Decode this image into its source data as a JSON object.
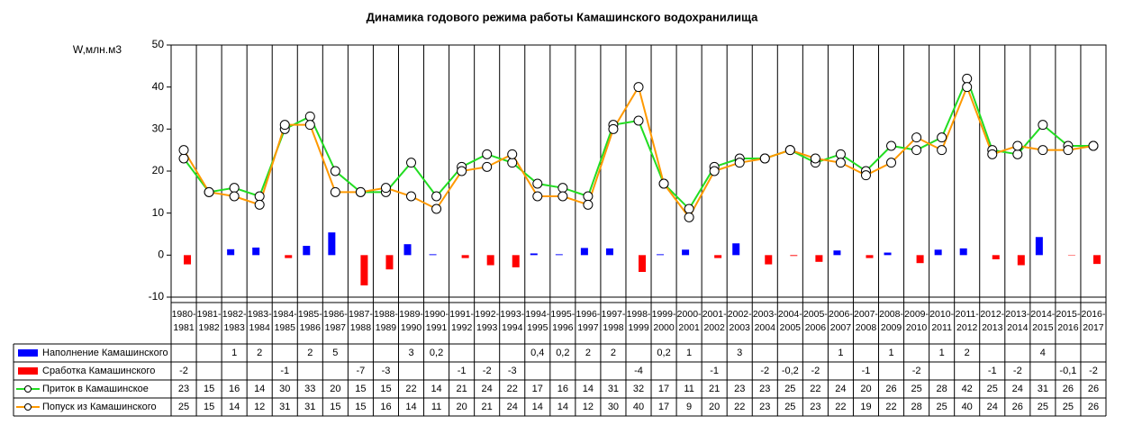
{
  "chart_data": {
    "type": "combo",
    "title": "Динамика годового режима работы Камашинского водохранилища",
    "y_label": "W,млн.м3",
    "categories": [
      "1980-1981",
      "1981-1982",
      "1982-1983",
      "1983-1984",
      "1984-1985",
      "1985-1986",
      "1986-1987",
      "1987-1988",
      "1988-1989",
      "1989-1990",
      "1990-1991",
      "1991-1992",
      "1992-1993",
      "1993-1994",
      "1994-1995",
      "1995-1996",
      "1996-1997",
      "1997-1998",
      "1998-1999",
      "1999-2000",
      "2000-2001",
      "2001-2002",
      "2002-2003",
      "2003-2004",
      "2004-2005",
      "2005-2006",
      "2006-2007",
      "2007-2008",
      "2008-2009",
      "2009-2010",
      "2010-2011",
      "2011-2012",
      "2012-2013",
      "2013-2014",
      "2014-2015",
      "2015-2016",
      "2016-2017"
    ],
    "ylim": [
      -10,
      50
    ],
    "yticks": [
      -10,
      0,
      10,
      20,
      30,
      40,
      50
    ],
    "series": [
      {
        "name": "Наполнение Камашинского",
        "type": "bar",
        "color": "#0000ff",
        "values": [
          null,
          null,
          1.4,
          1.8,
          null,
          2.2,
          5.4,
          null,
          null,
          2.6,
          0.2,
          null,
          null,
          null,
          0.4,
          0.2,
          1.7,
          1.6,
          null,
          0.2,
          1.3,
          null,
          2.8,
          null,
          null,
          null,
          1.1,
          null,
          0.6,
          null,
          1.3,
          1.6,
          null,
          null,
          4.3,
          null,
          null
        ],
        "value_labels": [
          null,
          null,
          "1",
          "2",
          null,
          "2",
          "5",
          null,
          null,
          "3",
          "0,2",
          null,
          null,
          null,
          "0,4",
          "0,2",
          "2",
          "2",
          null,
          "0,2",
          "1",
          null,
          "3",
          null,
          null,
          null,
          "1",
          null,
          "1",
          null,
          "1",
          "2",
          null,
          null,
          "4",
          null,
          null
        ]
      },
      {
        "name": "Сработка Камашинского",
        "type": "bar",
        "color": "#ff0000",
        "values": [
          -2.2,
          null,
          null,
          null,
          -0.7,
          null,
          null,
          -7.2,
          -3.4,
          null,
          null,
          -0.7,
          -2.4,
          -2.9,
          null,
          null,
          null,
          null,
          -4.0,
          null,
          null,
          -0.7,
          null,
          -2.2,
          -0.2,
          -1.6,
          null,
          -0.7,
          null,
          -1.9,
          null,
          null,
          -1.0,
          -2.4,
          null,
          -0.1,
          -2.1
        ],
        "value_labels": [
          "-2",
          null,
          null,
          null,
          "-1",
          null,
          null,
          "-7",
          "-3",
          null,
          null,
          "-1",
          "-2",
          "-3",
          null,
          null,
          null,
          null,
          "-4",
          null,
          null,
          "-1",
          null,
          "-2",
          "-0,2",
          "-2",
          null,
          "-1",
          null,
          "-2",
          null,
          null,
          "-1",
          "-2",
          null,
          "-0,1",
          "-2"
        ]
      },
      {
        "name": "Приток в Камашинское",
        "type": "line",
        "color": "#22dd22",
        "values": [
          23,
          15,
          16,
          14,
          30,
          33,
          20,
          15,
          15,
          22,
          14,
          21,
          24,
          22,
          17,
          16,
          14,
          31,
          32,
          17,
          11,
          21,
          23,
          23,
          25,
          22,
          24,
          20,
          26,
          25,
          28,
          42,
          25,
          24,
          31,
          26,
          26
        ]
      },
      {
        "name": "Попуск из Камашинского",
        "type": "line",
        "color": "#ff9900",
        "values": [
          25,
          15,
          14,
          12,
          31,
          31,
          15,
          15,
          16,
          14,
          11,
          20,
          21,
          24,
          14,
          14,
          12,
          30,
          40,
          17,
          9,
          20,
          22,
          23,
          25,
          23,
          22,
          19,
          22,
          28,
          25,
          40,
          24,
          26,
          25,
          25,
          26
        ]
      }
    ]
  }
}
